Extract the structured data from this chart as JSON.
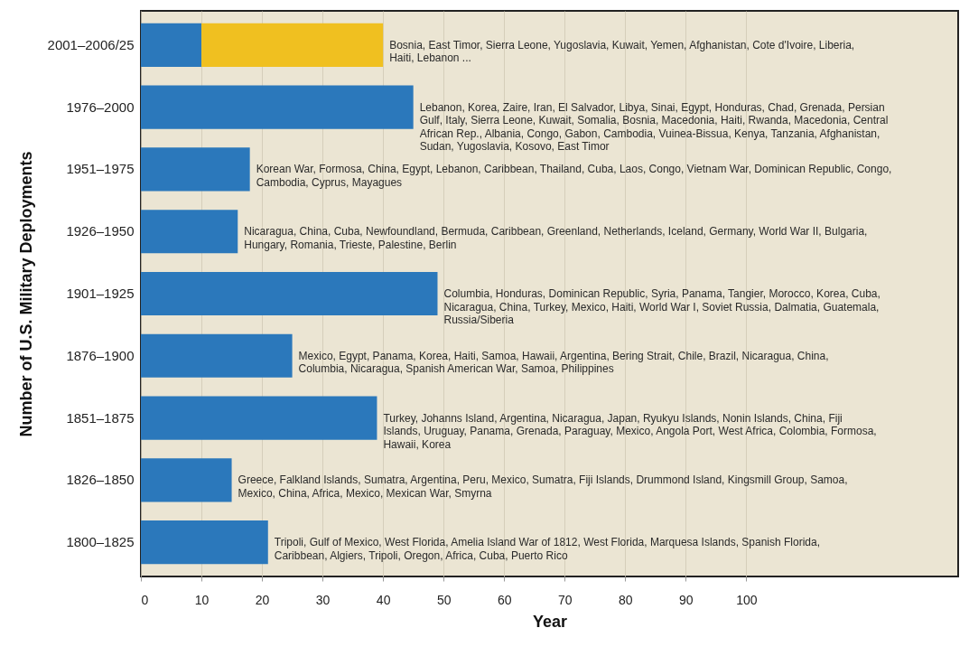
{
  "chart_data": {
    "type": "bar",
    "orientation": "horizontal",
    "stacked": true,
    "xlabel": "Year",
    "ylabel": "Number of U.S. Military Deployments",
    "categories": [
      "2001–2006/25",
      "1976–2000",
      "1951–1975",
      "1926–1950",
      "1901–1925",
      "1876–1900",
      "1851–1875",
      "1826–1850",
      "1800–1825"
    ],
    "series": [
      {
        "color": "#2b78bb",
        "values": [
          10,
          45,
          18,
          16,
          49,
          25,
          39,
          15,
          21
        ]
      },
      {
        "color": "#f0c020",
        "values": [
          30,
          null,
          null,
          null,
          null,
          null,
          null,
          null,
          null
        ]
      }
    ],
    "xlim": [
      0,
      135
    ],
    "xticks": [
      0,
      10,
      20,
      30,
      40,
      50,
      60,
      70,
      80,
      90,
      100
    ],
    "grid": "x",
    "annotations": [
      {
        "text": "Bosnia, East Timor, Sierra Leone, Yugoslavia, Kuwait, Yemen, Afghanistan, Cote d'Ivoire, Liberia, Haiti, Lebanon ...",
        "x": 40,
        "y": "2001–2006/25"
      },
      {
        "text": "Lebanon, Korea, Zaire, Iran, El Salvador, Libya, Sinai, Egypt, Honduras, Chad, Grenada, Persian Gulf, Italy, Sierra Leone, Kuwait, Somalia, Bosnia, Macedonia, Haiti, Rwanda, Macedonia, Central African Rep., Albania, Congo, Gabon, Cambodia, Vuinea-Bissua, Kenya, Tanzania, Afghanistan, Sudan, Yugoslavia, Kosovo, East Timor",
        "x": 45,
        "y": "1976–2000"
      },
      {
        "text": "Korean War, Formosa, China, Egypt, Lebanon, Caribbean, Thailand, Cuba, Laos, Congo, Vietnam War, Dominican Republic, Congo, Cambodia, Cyprus, Mayagues",
        "x": 18,
        "y": "1951–1975"
      },
      {
        "text": "Nicaragua, China, Cuba, Newfoundland, Bermuda, Caribbean, Greenland, Netherlands, Iceland, Germany, World War II, Bulgaria, Hungary, Romania, Trieste, Palestine, Berlin",
        "x": 16,
        "y": "1926–1950"
      },
      {
        "text": "Columbia, Honduras, Dominican Republic, Syria, Panama, Tangier, Morocco, Korea, Cuba, Nicaragua, China, Turkey, Mexico, Haiti, World War I, Soviet Russia, Dalmatia, Guatemala, Russia/Siberia",
        "x": 49,
        "y": "1901–1925"
      },
      {
        "text": "Mexico, Egypt, Panama, Korea, Haiti, Samoa, Hawaii, Argentina, Bering Strait, Chile, Brazil, Nicaragua, China, Columbia, Nicaragua, Spanish American War, Samoa, Philippines",
        "x": 25,
        "y": "1876–1900"
      },
      {
        "text": "Turkey, Johanns Island, Argentina, Nicaragua, Japan, Ryukyu Islands, Nonin Islands, China, Fiji Islands, Uruguay, Panama, Grenada, Paraguay, Mexico, Angola Port, West Africa, Colombia, Formosa, Hawaii, Korea",
        "x": 39,
        "y": "1851–1875"
      },
      {
        "text": "Greece, Falkland Islands, Sumatra, Argentina, Peru, Mexico, Sumatra, Fiji Islands, Drummond Island, Kingsmill Group, Samoa, Mexico, China, Africa, Mexico, Mexican War, Smyrna",
        "x": 15,
        "y": "1826–1850"
      },
      {
        "text": "Tripoli, Gulf of Mexico, West Florida, Amelia Island War of 1812, West Florida, Marquesa Islands, Spanish Florida, Caribbean, Algiers, Tripoli, Oregon, Africa, Cuba, Puerto Rico",
        "x": 21,
        "y": "1800–1825"
      }
    ]
  }
}
